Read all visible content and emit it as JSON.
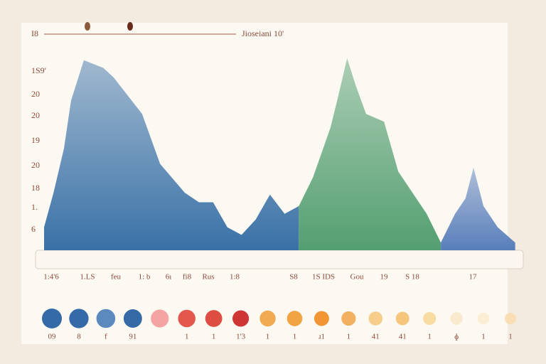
{
  "chart_data": {
    "type": "area",
    "corner_label": "I8",
    "title": "Jioseiani 10'",
    "y_labels": [
      "1S9'",
      "20",
      "20",
      "19",
      "20",
      "18",
      "1.",
      "6"
    ],
    "x_labels": [
      "1:4'6",
      "1.LS",
      "feu",
      "1: b",
      "6ı",
      "fi8",
      "Rus",
      "1:8",
      "S8",
      "1S IDS",
      "Gou",
      "19",
      "S 18",
      "17"
    ],
    "xlim": [
      0,
      100
    ],
    "ylim": [
      0,
      100
    ],
    "series": [
      {
        "color": "#2f6aa3",
        "x": [
          0,
          2,
          4.2,
          5.7,
          8.4,
          12.5,
          14.7,
          20.7,
          24.5,
          29.7,
          32.7,
          35.7,
          38.7,
          41.7,
          44.7,
          47.7,
          50.8,
          53.8
        ],
        "values": [
          12,
          30,
          53,
          78,
          99,
          95,
          90,
          71,
          45,
          30,
          25,
          25,
          12,
          8,
          16,
          29,
          19,
          23
        ]
      },
      {
        "color": "#4a9a6a",
        "x": [
          53.8,
          56.8,
          60.5,
          62,
          64,
          65.8,
          68,
          71.8,
          74.8,
          77.8,
          80.8,
          83.8
        ],
        "values": [
          23,
          38,
          64,
          79,
          100,
          86,
          71,
          67,
          41,
          30,
          19,
          4
        ]
      },
      {
        "color": "#4f78b8",
        "x": [
          83.8,
          86.8,
          89,
          90.7,
          92.8,
          95.8,
          99.5
        ],
        "values": [
          4,
          19,
          27,
          43,
          23,
          12,
          4
        ]
      }
    ],
    "dots": [
      {
        "color": "#1f5aa0",
        "label": "09"
      },
      {
        "color": "#1e5a9e",
        "label": "8"
      },
      {
        "color": "#4a7cb8",
        "label": "f"
      },
      {
        "color": "#1f5a9e",
        "label": "91"
      },
      {
        "color": "#f29a9a"
      },
      {
        "color": "#e0453a",
        "label": "1"
      },
      {
        "color": "#d93a2e",
        "label": "1"
      },
      {
        "color": "#c82020",
        "label": "1'3"
      },
      {
        "color": "#f0a040",
        "label": "1"
      },
      {
        "color": "#f09a30",
        "label": "1"
      },
      {
        "color": "#f08a20",
        "label": "ɹ1"
      },
      {
        "color": "#f0a850",
        "label": "1"
      },
      {
        "color": "#f5c880",
        "label": "41"
      },
      {
        "color": "#f5c070",
        "label": "41"
      },
      {
        "color": "#f8d898",
        "label": "1"
      },
      {
        "color": "#fae8c8",
        "label": "ɸ"
      },
      {
        "color": "#fbecd0",
        "label": "1"
      },
      {
        "color": "#f8dcb0",
        "label": "1"
      }
    ]
  }
}
